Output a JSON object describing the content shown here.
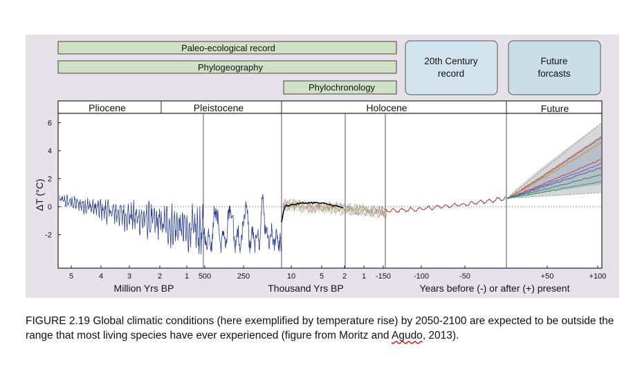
{
  "header_bars": {
    "paleo": "Paleo-ecological record",
    "phylogeography": "Phylogeography",
    "phylochronology": "Phylochronology",
    "twentieth_line1": "20th Century",
    "twentieth_line2": "record",
    "future_line1": "Future",
    "future_line2": "forcasts"
  },
  "epochs": [
    "Pliocene",
    "Pleistocene",
    "Holocene",
    "Future"
  ],
  "colors": {
    "figure_bg": "#e7e2ea",
    "green_bar": "#d0e1c5",
    "blue_box": "#d3e4ed",
    "blue_box_dark": "#c9dee7",
    "paleo_line": "#2b3f8f",
    "holocene_mean": "#000000",
    "instrumental": "#b5282e",
    "proj_band": "#b9bcc0"
  },
  "chart_data": {
    "type": "line",
    "ylabel": "ΔT (°C)",
    "yticks": [
      "6",
      "4",
      "2",
      "0",
      "-2"
    ],
    "ylim": [
      -4,
      7
    ],
    "segments": [
      {
        "name": "Pliocene",
        "x_unit": "Million Yrs BP",
        "ticks": [
          "5",
          "4",
          "3",
          "2",
          "1"
        ]
      },
      {
        "name": "Pleistocene",
        "x_unit": "Thousand Yrs BP",
        "ticks": [
          "500",
          "250"
        ]
      },
      {
        "name": "Holocene",
        "x_unit": "Thousand Yrs BP",
        "ticks": [
          "10",
          "5",
          "2",
          "1"
        ]
      },
      {
        "name": "20th Century",
        "x_unit": "Years before (-) or after (+) present",
        "ticks": [
          "-150",
          "-100",
          "-50"
        ]
      },
      {
        "name": "Future",
        "x_unit": "Years before (-) or after (+) present",
        "ticks": [
          "+50",
          "+100"
        ]
      }
    ],
    "axis_labels": {
      "million": "Million Yrs BP",
      "thousand": "Thousand Yrs BP",
      "years": "Years before (-) or after (+) present"
    },
    "future_projection": {
      "start": 0.6,
      "end_low": 1.8,
      "end_high": 5.0,
      "band_low": 1.0,
      "band_high": 6.0
    }
  },
  "caption": {
    "text_before": "FIGURE 2.19 Global climatic conditions (here exemplified by temperature rise) by 2050-2100 are expected to be outside the range that most living species have ever experienced (figure from Moritz and ",
    "agudo": "Agudo",
    "text_after": ", 2013)."
  }
}
